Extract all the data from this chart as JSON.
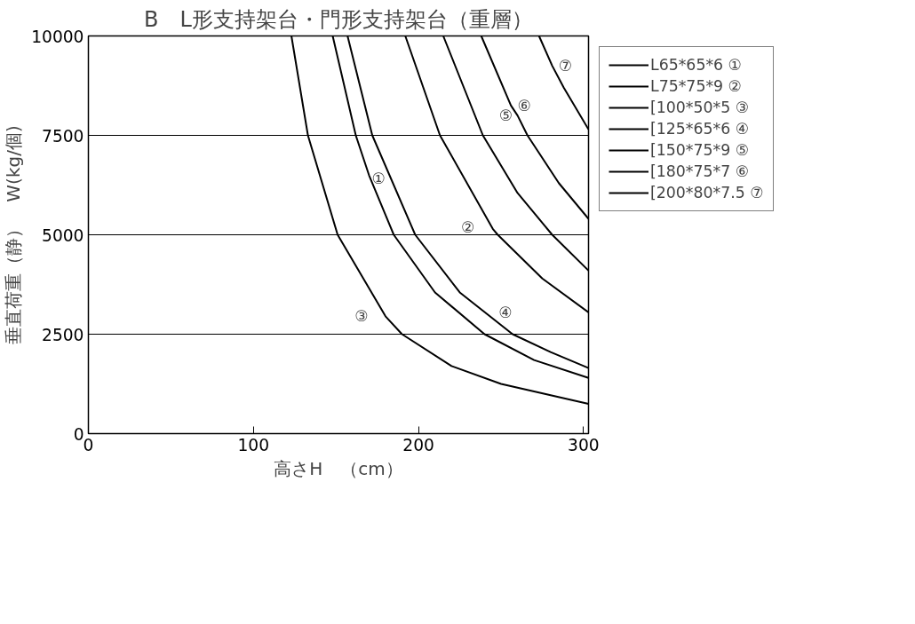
{
  "chart_data": {
    "type": "line",
    "title": "B　L形支持架台・門形支持架台（重層）",
    "xlabel": "高さH　（cm）",
    "ylabel": "垂直荷重（静）　W(kg/個)",
    "xlim": [
      0,
      303
    ],
    "ylim": [
      0,
      10000
    ],
    "xticks": [
      0,
      100,
      200,
      300
    ],
    "yticks": [
      0,
      2500,
      5000,
      7500,
      10000
    ],
    "grid": "y",
    "legend": "right",
    "line_style": "solid",
    "marker": "none",
    "series": [
      {
        "name": "L65*65*6 ①",
        "color": "#000000",
        "x": [
          148,
          162,
          170,
          185,
          210,
          240,
          270,
          303
        ],
        "values": [
          10000,
          7500,
          6500,
          5000,
          3550,
          2500,
          1850,
          1400
        ]
      },
      {
        "name": "L75*75*9 ②",
        "color": "#000000",
        "x": [
          192,
          213,
          245,
          248,
          275,
          303
        ],
        "values": [
          10000,
          7500,
          5150,
          5000,
          3900,
          3050
        ]
      },
      {
        "name": "[100*50*5 ③",
        "color": "#000000",
        "x": [
          123,
          133,
          151,
          180,
          190,
          220,
          250,
          303
        ],
        "values": [
          10000,
          7500,
          5000,
          2950,
          2500,
          1700,
          1250,
          750
        ]
      },
      {
        "name": "[125*65*6 ④",
        "color": "#000000",
        "x": [
          157,
          172,
          198,
          225,
          257,
          280,
          303
        ],
        "values": [
          10000,
          7500,
          5000,
          3550,
          2500,
          2050,
          1650
        ]
      },
      {
        "name": "[150*75*9 ⑤",
        "color": "#000000",
        "x": [
          215,
          239,
          260,
          281,
          303
        ],
        "values": [
          10000,
          7500,
          6050,
          5000,
          4100
        ]
      },
      {
        "name": "[180*75*7 ⑥",
        "color": "#000000",
        "x": [
          238,
          256,
          260,
          266,
          285,
          303
        ],
        "values": [
          10000,
          8250,
          8000,
          7500,
          6300,
          5400
        ]
      },
      {
        "name": "[200*80*7.5 ⑦",
        "color": "#000000",
        "x": [
          273,
          281,
          288,
          303
        ],
        "values": [
          10000,
          9250,
          8700,
          7650
        ]
      }
    ],
    "annotations": [
      {
        "text": "①",
        "x": 170,
        "y": 6500
      },
      {
        "text": "②",
        "x": 245,
        "y": 5150
      },
      {
        "text": "③",
        "x": 180,
        "y": 2950
      },
      {
        "text": "④",
        "x": 257,
        "y": 2500
      },
      {
        "text": "⑤",
        "x": 260,
        "y": 8000
      },
      {
        "text": "⑥",
        "x": 256,
        "y": 8250
      },
      {
        "text": "⑦",
        "x": 281,
        "y": 9250
      }
    ]
  }
}
